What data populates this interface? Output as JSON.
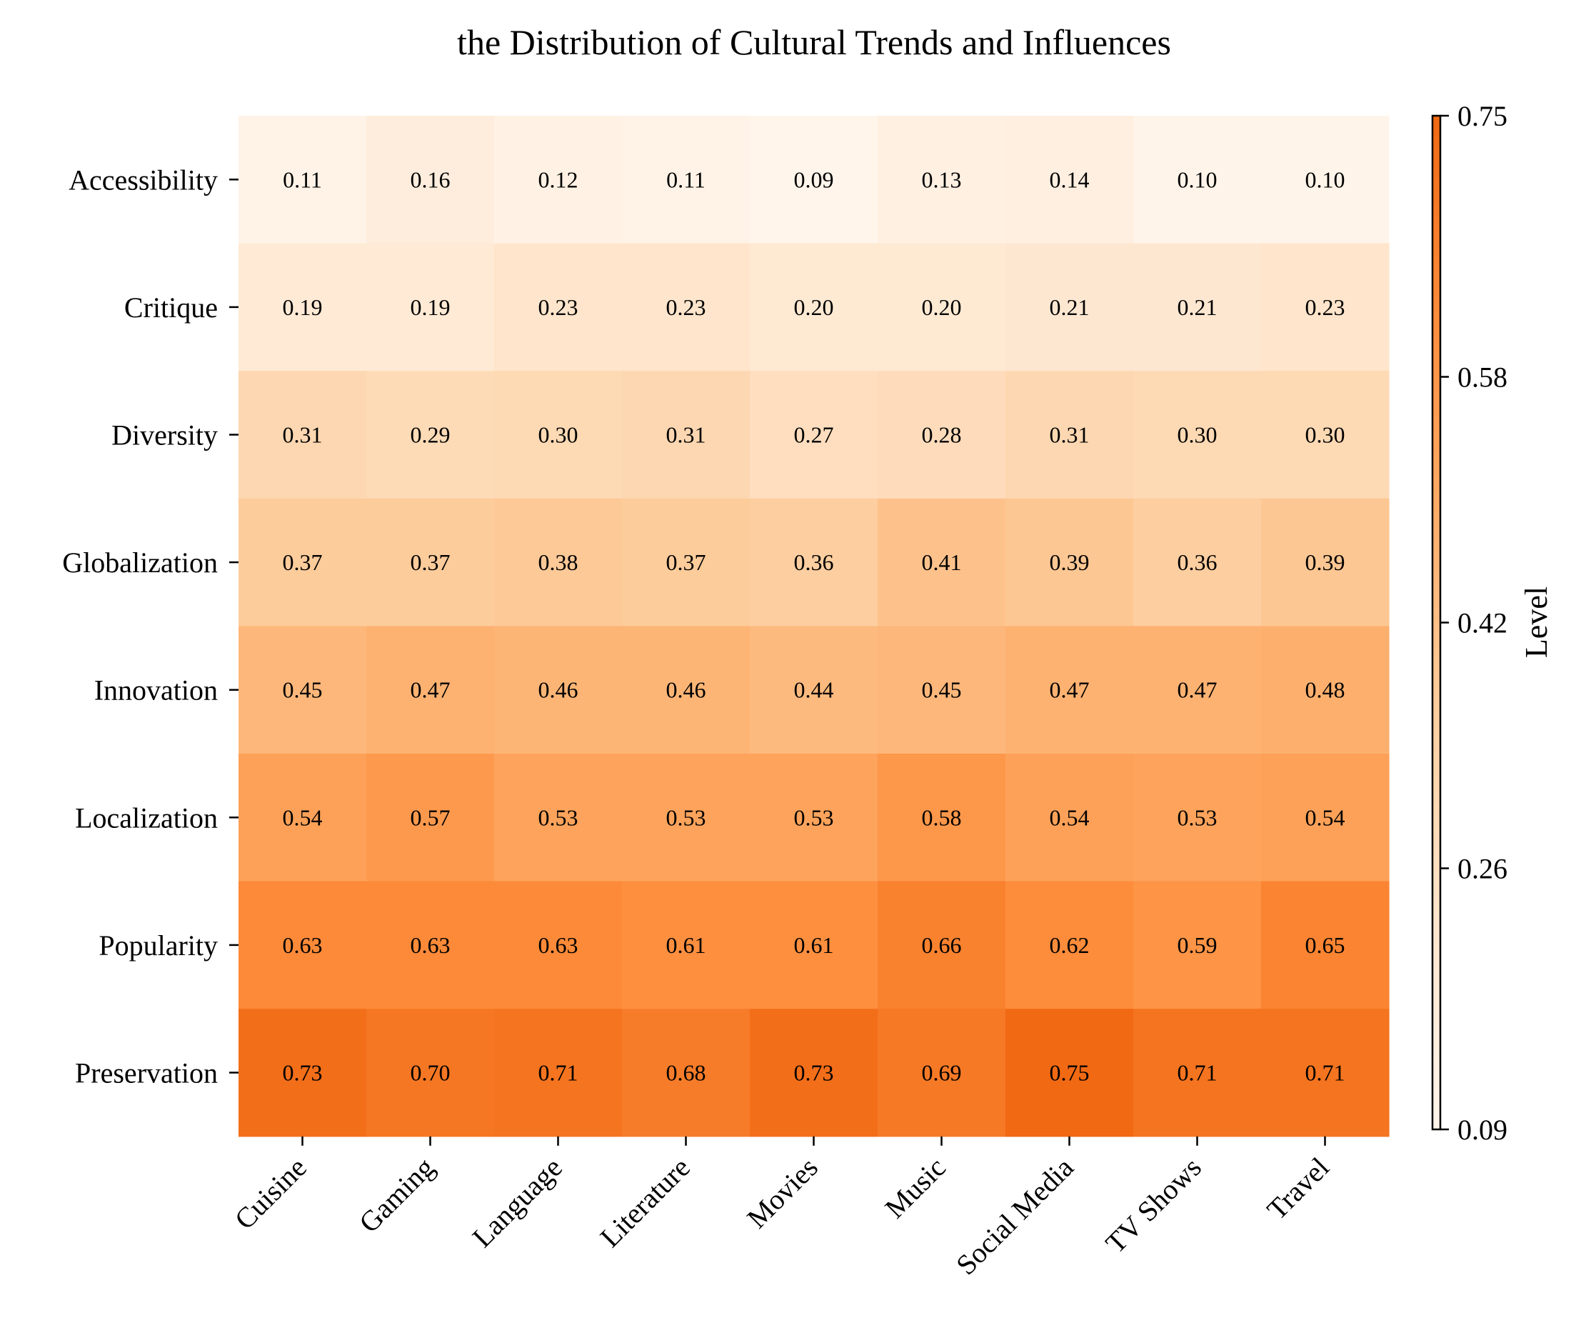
{
  "chart_data": {
    "type": "heatmap",
    "title": "the Distribution of Cultural Trends and Influences",
    "x_categories": [
      "Cuisine",
      "Gaming",
      "Language",
      "Literature",
      "Movies",
      "Music",
      "Social Media",
      "TV Shows",
      "Travel"
    ],
    "y_categories": [
      "Accessibility",
      "Critique",
      "Diversity",
      "Globalization",
      "Innovation",
      "Localization",
      "Popularity",
      "Preservation"
    ],
    "values": [
      [
        0.11,
        0.16,
        0.12,
        0.11,
        0.09,
        0.13,
        0.14,
        0.1,
        0.1
      ],
      [
        0.19,
        0.19,
        0.23,
        0.23,
        0.2,
        0.2,
        0.21,
        0.21,
        0.23
      ],
      [
        0.31,
        0.29,
        0.3,
        0.31,
        0.27,
        0.28,
        0.31,
        0.3,
        0.3
      ],
      [
        0.37,
        0.37,
        0.38,
        0.37,
        0.36,
        0.41,
        0.39,
        0.36,
        0.39
      ],
      [
        0.45,
        0.47,
        0.46,
        0.46,
        0.44,
        0.45,
        0.47,
        0.47,
        0.48
      ],
      [
        0.54,
        0.57,
        0.53,
        0.53,
        0.53,
        0.58,
        0.54,
        0.53,
        0.54
      ],
      [
        0.63,
        0.63,
        0.63,
        0.61,
        0.61,
        0.66,
        0.62,
        0.59,
        0.65
      ],
      [
        0.73,
        0.7,
        0.71,
        0.68,
        0.73,
        0.69,
        0.75,
        0.71,
        0.71
      ]
    ],
    "colorbar": {
      "label": "Level",
      "range": [
        0.09,
        0.75
      ],
      "ticks": [
        "0.09",
        "0.26",
        "0.42",
        "0.58",
        "0.75"
      ]
    },
    "colormap": [
      "#fff5eb",
      "#fee6ce",
      "#fdd0a2",
      "#fdae6b",
      "#fd8d3c",
      "#f16913"
    ]
  }
}
